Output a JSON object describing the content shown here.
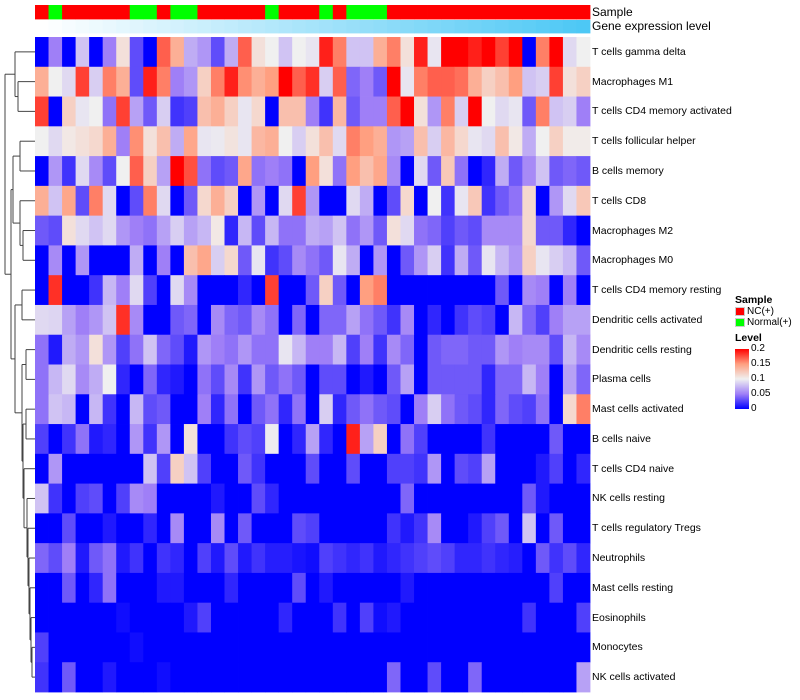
{
  "chart_data": {
    "type": "heatmap",
    "annotation_titles": {
      "sample": "Sample",
      "gene_expression": "Gene expression level"
    },
    "sample_groups": [
      "NC(+)",
      "Normal(+)",
      "NC(+)",
      "NC(+)",
      "NC(+)",
      "NC(+)",
      "NC(+)",
      "Normal(+)",
      "Normal(+)",
      "NC(+)",
      "Normal(+)",
      "Normal(+)",
      "NC(+)",
      "NC(+)",
      "NC(+)",
      "NC(+)",
      "NC(+)",
      "Normal(+)",
      "NC(+)",
      "NC(+)",
      "NC(+)",
      "Normal(+)",
      "NC(+)",
      "Normal(+)",
      "Normal(+)",
      "Normal(+)",
      "NC(+)",
      "NC(+)",
      "NC(+)",
      "NC(+)",
      "NC(+)",
      "NC(+)",
      "NC(+)",
      "NC(+)",
      "NC(+)",
      "NC(+)",
      "NC(+)",
      "NC(+)",
      "NC(+)",
      "NC(+)",
      "NC(+)"
    ],
    "rows": [
      "T cells gamma delta",
      "Macrophages M1",
      "T cells CD4 memory activated",
      "T cells follicular helper",
      "B cells memory",
      "T cells CD8",
      "Macrophages M2",
      "Macrophages M0",
      "T cells CD4 memory resting",
      "Dendritic cells activated",
      "Dendritic cells resting",
      "Plasma cells",
      "Mast cells activated",
      "B cells naive",
      "T cells CD4 naive",
      "NK cells resting",
      "T cells regulatory  Tregs",
      "Neutrophils",
      "Mast cells resting",
      "Eosinophils",
      "Monocytes",
      "NK cells activated"
    ],
    "values": [
      [
        0,
        0.05,
        0,
        0.08,
        0,
        0.05,
        0.11,
        0.03,
        0,
        0.17,
        0.14,
        0.07,
        0.06,
        0.03,
        0.07,
        0.17,
        0.11,
        0.1,
        0.08,
        0.1,
        0.095,
        0.19,
        0.16,
        0.08,
        0.08,
        0.14,
        0.16,
        0.11,
        0.19,
        0.095,
        0.2,
        0.2,
        0.19,
        0.2,
        0.18,
        0.2,
        0,
        0.16,
        0.2,
        0.09,
        0.1
      ],
      [
        0.14,
        0.1,
        0.09,
        0.18,
        0.085,
        0.16,
        0.14,
        0.03,
        0.19,
        0.16,
        0.05,
        0.06,
        0.12,
        0.16,
        0.19,
        0.155,
        0.14,
        0.15,
        0.2,
        0.17,
        0.185,
        0.085,
        0.17,
        0.04,
        0.05,
        0.035,
        0.2,
        0.095,
        0.16,
        0.17,
        0.17,
        0.165,
        0.14,
        0.12,
        0.13,
        0.15,
        0.08,
        0.085,
        0.18,
        0.11,
        0.12
      ],
      [
        0.18,
        0,
        0.12,
        0.095,
        0.1,
        0.045,
        0.18,
        0.065,
        0.035,
        0.085,
        0.02,
        0.025,
        0.13,
        0.14,
        0.12,
        0.095,
        0.115,
        0,
        0.13,
        0.13,
        0.05,
        0.02,
        0.135,
        0.035,
        0.05,
        0.05,
        0.17,
        0.2,
        0.11,
        0.06,
        0.16,
        0.085,
        0.2,
        0.1,
        0.09,
        0.095,
        0.035,
        0.16,
        0.08,
        0.085,
        0.05
      ],
      [
        0.1,
        0.09,
        0.105,
        0.11,
        0.115,
        0.14,
        0.05,
        0.155,
        0.11,
        0.13,
        0.07,
        0.145,
        0.095,
        0.097,
        0.108,
        0.095,
        0.135,
        0.14,
        0.1,
        0.085,
        0.11,
        0.13,
        0.09,
        0.16,
        0.15,
        0.14,
        0.06,
        0.065,
        0.13,
        0.085,
        0.135,
        0.115,
        0.095,
        0.09,
        0.13,
        0.105,
        0.07,
        0.1,
        0.12,
        0.103,
        0.103
      ],
      [
        0,
        0.06,
        0.02,
        0.09,
        0.055,
        0.03,
        0.1,
        0.17,
        0.12,
        0.065,
        0.2,
        0.175,
        0.045,
        0.03,
        0.035,
        0.145,
        0.045,
        0.05,
        0.045,
        0,
        0.15,
        0.11,
        0.045,
        0.15,
        0.13,
        0.145,
        0.055,
        0,
        0.09,
        0.035,
        0.125,
        0.045,
        0,
        0.015,
        0.07,
        0.035,
        0.055,
        0.08,
        0.035,
        0.04,
        0.035
      ],
      [
        0.14,
        0.08,
        0.145,
        0.03,
        0.16,
        0.09,
        0,
        0.03,
        0.16,
        0.09,
        0,
        0.035,
        0.115,
        0.14,
        0.12,
        0,
        0.06,
        0,
        0.09,
        0.18,
        0.06,
        0,
        0,
        0.09,
        0.07,
        0,
        0.03,
        0.115,
        0,
        0.1,
        0.02,
        0.095,
        0.125,
        0.02,
        0.035,
        0.045,
        0.115,
        0,
        0.06,
        0.09,
        0.125
      ],
      [
        0.035,
        0.03,
        0.11,
        0.09,
        0.08,
        0.09,
        0.06,
        0.05,
        0.045,
        0.065,
        0.085,
        0.065,
        0.075,
        0.105,
        0.015,
        0.075,
        0.03,
        0.075,
        0.045,
        0.045,
        0.07,
        0.065,
        0.08,
        0.045,
        0.06,
        0.035,
        0.11,
        0.09,
        0.045,
        0.04,
        0.025,
        0.035,
        0.03,
        0.055,
        0.055,
        0.055,
        0.115,
        0.035,
        0.035,
        0.015,
        0
      ],
      [
        0,
        0.055,
        0,
        0.06,
        0,
        0,
        0,
        0.07,
        0,
        0.05,
        0,
        0.13,
        0.145,
        0.085,
        0.115,
        0.035,
        0.095,
        0.02,
        0.03,
        0.055,
        0.045,
        0.035,
        0.095,
        0.07,
        0,
        0.06,
        0,
        0.035,
        0.06,
        0.085,
        0.02,
        0.07,
        0.035,
        0.095,
        0.075,
        0.06,
        0.12,
        0.095,
        0.085,
        0.075,
        0.035
      ],
      [
        0,
        0.185,
        0,
        0,
        0.02,
        0.075,
        0.05,
        0.09,
        0.025,
        0,
        0.09,
        0.055,
        0,
        0,
        0,
        0.015,
        0,
        0.18,
        0,
        0,
        0.035,
        0.12,
        0.035,
        0,
        0.15,
        0.16,
        0,
        0,
        0,
        0,
        0,
        0,
        0,
        0,
        0.035,
        0,
        0.055,
        0.05,
        0,
        0.05,
        0
      ],
      [
        0.09,
        0.088,
        0.065,
        0.05,
        0.06,
        0.08,
        0.185,
        0.055,
        0,
        0,
        0.035,
        0.04,
        0,
        0.055,
        0.04,
        0.035,
        0.055,
        0.045,
        0,
        0.04,
        0,
        0.04,
        0.04,
        0.065,
        0.045,
        0.035,
        0.02,
        0.055,
        0,
        0.015,
        0,
        0.02,
        0.03,
        0.025,
        0,
        0.075,
        0.04,
        0.025,
        0.05,
        0.065,
        0.065
      ],
      [
        0.045,
        0.01,
        0.07,
        0.06,
        0.11,
        0.06,
        0.025,
        0.045,
        0.08,
        0.04,
        0.03,
        0.01,
        0.06,
        0.05,
        0.045,
        0.06,
        0.045,
        0.045,
        0.095,
        0.075,
        0.05,
        0.05,
        0.075,
        0.025,
        0.05,
        0.02,
        0.055,
        0.04,
        0,
        0.035,
        0.04,
        0.04,
        0.035,
        0.035,
        0.06,
        0.05,
        0.055,
        0.055,
        0.03,
        0.075,
        0.055
      ],
      [
        0.045,
        0.075,
        0.09,
        0.055,
        0.07,
        0.1,
        0.015,
        0,
        0.04,
        0.015,
        0.01,
        0,
        0.045,
        0.03,
        0.055,
        0.02,
        0.06,
        0.035,
        0.045,
        0.035,
        0,
        0.03,
        0.03,
        0,
        0.01,
        0,
        0.035,
        0.065,
        0,
        0.035,
        0.035,
        0.035,
        0.035,
        0.015,
        0.04,
        0.04,
        0.075,
        0.05,
        0,
        0.065,
        0.04
      ],
      [
        0.045,
        0.08,
        0.075,
        0,
        0.075,
        0.02,
        0,
        0.075,
        0.03,
        0.035,
        0,
        0,
        0.05,
        0.015,
        0.045,
        0,
        0.035,
        0.045,
        0.015,
        0.045,
        0,
        0.085,
        0.015,
        0.035,
        0.045,
        0.035,
        0.03,
        0,
        0.05,
        0.085,
        0.045,
        0.035,
        0.03,
        0.015,
        0.04,
        0.03,
        0.025,
        0.045,
        0,
        0.115,
        0.16
      ],
      [
        0.025,
        0,
        0.02,
        0.045,
        0.01,
        0.015,
        0,
        0.06,
        0.02,
        0.06,
        0,
        0.11,
        0,
        0,
        0.02,
        0.03,
        0.025,
        0.098,
        0,
        0.015,
        0.065,
        0.015,
        0,
        0.19,
        0.065,
        0.12,
        0,
        0.045,
        0.025,
        0,
        0,
        0,
        0,
        0.02,
        0,
        0,
        0,
        0,
        0.035,
        0,
        0
      ],
      [
        0,
        0.06,
        0,
        0,
        0,
        0,
        0,
        0,
        0.08,
        0.025,
        0.12,
        0.08,
        0.025,
        0,
        0,
        0.035,
        0.02,
        0,
        0,
        0,
        0.03,
        0,
        0,
        0.03,
        0,
        0,
        0.025,
        0.025,
        0.02,
        0.06,
        0,
        0.03,
        0.025,
        0.065,
        0,
        0,
        0,
        0.01,
        0.025,
        0,
        0.015
      ],
      [
        0.08,
        0.02,
        0,
        0.025,
        0.03,
        0,
        0.025,
        0.055,
        0.05,
        0,
        0,
        0,
        0,
        0.01,
        0,
        0,
        0.03,
        0.015,
        0,
        0,
        0,
        0,
        0,
        0,
        0,
        0,
        0,
        0.04,
        0,
        0,
        0,
        0,
        0,
        0,
        0,
        0,
        0.035,
        0.01,
        0,
        0,
        0
      ],
      [
        0,
        0,
        0.03,
        0,
        0,
        0.01,
        0,
        0,
        0.015,
        0,
        0.055,
        0,
        0,
        0.055,
        0,
        0.035,
        0,
        0,
        0,
        0.03,
        0.025,
        0,
        0,
        0,
        0,
        0,
        0.02,
        0.01,
        0.02,
        0.055,
        0,
        0,
        0.01,
        0.025,
        0.035,
        0,
        0.08,
        0,
        0.035,
        0,
        0
      ],
      [
        0.04,
        0.03,
        0.05,
        0.01,
        0.035,
        0.045,
        0.01,
        0.02,
        0,
        0.02,
        0.015,
        0,
        0.025,
        0.01,
        0.03,
        0.01,
        0.02,
        0.012,
        0.012,
        0.008,
        0.005,
        0.025,
        0.02,
        0.015,
        0.02,
        0.01,
        0.015,
        0.02,
        0.025,
        0.03,
        0.025,
        0.015,
        0.015,
        0.02,
        0.015,
        0.012,
        0,
        0.035,
        0.02,
        0.03,
        0.015
      ],
      [
        0,
        0,
        0.035,
        0,
        0.015,
        0.045,
        0,
        0,
        0,
        0.01,
        0.01,
        0,
        0,
        0,
        0.015,
        0,
        0,
        0,
        0,
        0.03,
        0,
        0.01,
        0,
        0,
        0,
        0,
        0,
        0.01,
        0,
        0,
        0,
        0,
        0,
        0,
        0,
        0,
        0,
        0,
        0.025,
        0,
        0
      ],
      [
        0,
        0,
        0,
        0,
        0,
        0,
        0.005,
        0,
        0,
        0,
        0,
        0.01,
        0.025,
        0,
        0,
        0,
        0,
        0,
        0.015,
        0,
        0,
        0,
        0.02,
        0,
        0.025,
        0.005,
        0.01,
        0,
        0,
        0,
        0,
        0,
        0,
        0,
        0,
        0,
        0.02,
        0,
        0,
        0,
        0.025
      ],
      [
        0.025,
        0,
        0,
        0,
        0,
        0,
        0,
        0.005,
        0,
        0,
        0,
        0,
        0,
        0,
        0,
        0,
        0,
        0,
        0,
        0,
        0,
        0,
        0,
        0,
        0,
        0,
        0,
        0,
        0,
        0,
        0,
        0,
        0,
        0,
        0,
        0,
        0,
        0,
        0,
        0,
        0
      ],
      [
        0.02,
        0,
        0.035,
        0,
        0,
        0.01,
        0,
        0,
        0,
        0.005,
        0,
        0,
        0,
        0,
        0,
        0,
        0,
        0,
        0,
        0,
        0,
        0,
        0,
        0,
        0,
        0,
        0.04,
        0,
        0,
        0.03,
        0,
        0,
        0.04,
        0,
        0,
        0,
        0,
        0,
        0,
        0,
        0.065
      ]
    ],
    "color_scale": {
      "min": 0,
      "max": 0.2,
      "stops": [
        "#0000ff",
        "#9f7ff7",
        "#f0f0f0",
        "#ff9f80",
        "#ff0000"
      ]
    },
    "legend": {
      "sample_title": "Sample",
      "sample_items": [
        {
          "label": "NC(+)",
          "color": "#ff0000"
        },
        {
          "label": "Normal(+)",
          "color": "#00ff00"
        }
      ],
      "level_title": "Level",
      "level_ticks": [
        "0.2",
        "0.15",
        "0.1",
        "0.05",
        "0"
      ],
      "placement": "right"
    },
    "gene_expression_colors": [
      "#ffffff",
      "#4dc8f5"
    ]
  }
}
